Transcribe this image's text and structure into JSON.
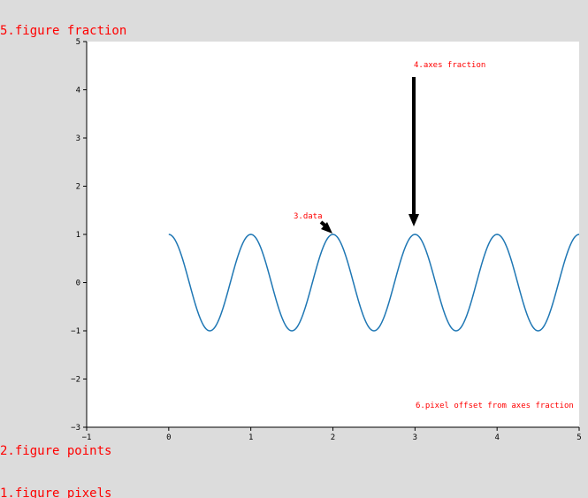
{
  "chart_data": {
    "type": "line",
    "xlim": [
      -1,
      5
    ],
    "ylim": [
      -3,
      5
    ],
    "x_ticks": [
      "−1",
      "0",
      "1",
      "2",
      "3",
      "4",
      "5"
    ],
    "y_ticks": [
      "5",
      "4",
      "3",
      "2",
      "1",
      "0",
      "−1",
      "−2",
      "−3"
    ],
    "series": [
      {
        "function": "cos(2*pi*x)",
        "x_range": [
          0,
          5
        ],
        "color": "#1f77b4"
      }
    ],
    "grid": false
  },
  "annotations": {
    "data": "3.data",
    "axes_fraction": "4.axes fraction",
    "figure_fraction": "5.figure fraction",
    "pixel_offset": "6.pixel offset from axes fraction",
    "figure_points": "2.figure points",
    "figure_pixels": "1.figure pixels"
  },
  "colors": {
    "figure_bg": "#dcdcdc",
    "axes_bg": "#ffffff",
    "annotation": "#ff0000",
    "line": "#1f77b4"
  }
}
